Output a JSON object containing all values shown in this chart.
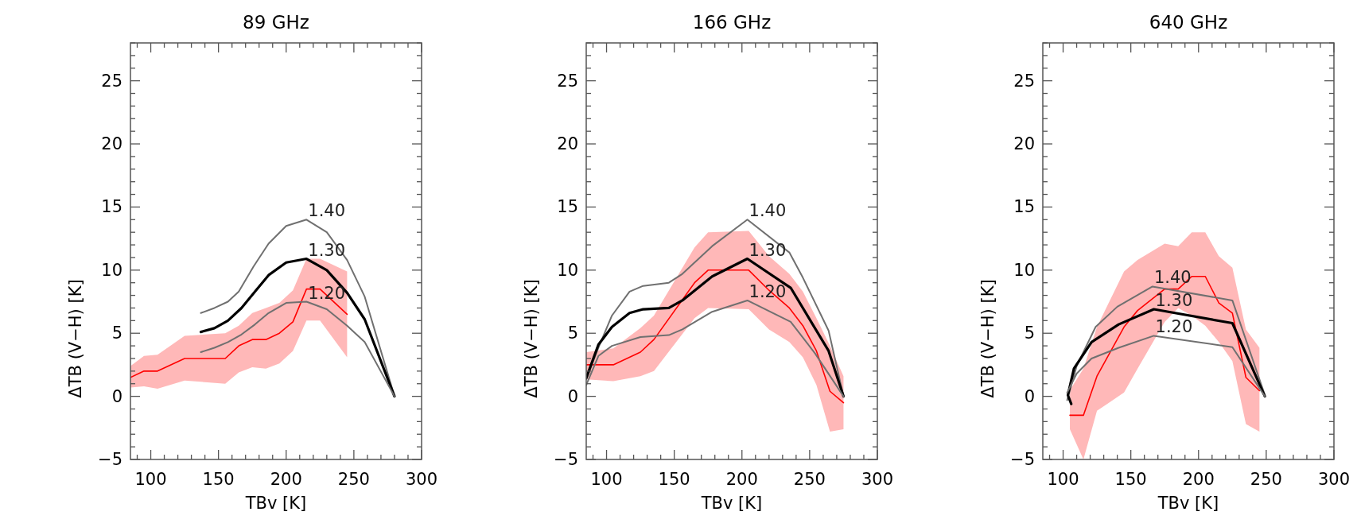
{
  "chart_data": [
    {
      "type": "line",
      "title": "89 GHz",
      "xlabel": "TBv [K]",
      "ylabel": "ΔTB (V−H) [K]",
      "xlim": [
        85,
        300
      ],
      "ylim": [
        -5,
        28
      ],
      "xticks": [
        {
          "value": 90,
          "label": null
        },
        100,
        {
          "value": 110,
          "label": null
        },
        {
          "value": 120,
          "label": null
        },
        {
          "value": 130,
          "label": null
        },
        {
          "value": 140,
          "label": null
        },
        150,
        {
          "value": 160,
          "label": null
        },
        {
          "value": 170,
          "label": null
        },
        {
          "value": 180,
          "label": null
        },
        {
          "value": 190,
          "label": null
        },
        200,
        {
          "value": 210,
          "label": null
        },
        {
          "value": 220,
          "label": null
        },
        {
          "value": 230,
          "label": null
        },
        {
          "value": 240,
          "label": null
        },
        250,
        {
          "value": 260,
          "label": null
        },
        {
          "value": 270,
          "label": null
        },
        {
          "value": 280,
          "label": null
        },
        {
          "value": 290,
          "label": null
        },
        300
      ],
      "yticks": [
        -5,
        {
          "value": -4,
          "label": null
        },
        {
          "value": -3,
          "label": null
        },
        {
          "value": -2,
          "label": null
        },
        {
          "value": -1,
          "label": null
        },
        0,
        {
          "value": 1,
          "label": null
        },
        {
          "value": 2,
          "label": null
        },
        {
          "value": 3,
          "label": null
        },
        {
          "value": 4,
          "label": null
        },
        5,
        {
          "value": 6,
          "label": null
        },
        {
          "value": 7,
          "label": null
        },
        {
          "value": 8,
          "label": null
        },
        {
          "value": 9,
          "label": null
        },
        10,
        {
          "value": 11,
          "label": null
        },
        {
          "value": 12,
          "label": null
        },
        {
          "value": 13,
          "label": null
        },
        {
          "value": 14,
          "label": null
        },
        15,
        {
          "value": 16,
          "label": null
        },
        {
          "value": 17,
          "label": null
        },
        {
          "value": 18,
          "label": null
        },
        {
          "value": 19,
          "label": null
        },
        20,
        {
          "value": 21,
          "label": null
        },
        {
          "value": 22,
          "label": null
        },
        {
          "value": 23,
          "label": null
        },
        {
          "value": 24,
          "label": null
        },
        25,
        {
          "value": 26,
          "label": null
        },
        {
          "value": 27,
          "label": null
        },
        {
          "value": 28,
          "label": null
        }
      ],
      "series": [
        {
          "color": "#ff0000",
          "x": [
            85,
            95,
            105,
            125,
            155,
            165,
            175,
            185,
            195,
            205,
            215,
            225,
            245
          ],
          "values": [
            1.5,
            2,
            2,
            3,
            3,
            4,
            4.5,
            4.5,
            5,
            5.9,
            8.5,
            8.5,
            6.5
          ],
          "lower": [
            0.7,
            0.8,
            0.6,
            1.25,
            1,
            1.9,
            2.3,
            2.2,
            2.6,
            3.6,
            6,
            6,
            3.1
          ],
          "upper": [
            2.4,
            3.2,
            3.3,
            4.8,
            5,
            5.6,
            6.6,
            7,
            7.4,
            8.4,
            10.9,
            10.9,
            9.9
          ]
        },
        {
          "name": "1.40",
          "color": "#707070",
          "x": [
            137,
            147,
            157,
            165,
            176,
            187,
            200,
            215,
            230,
            245,
            258,
            280
          ],
          "values": [
            6.6,
            7,
            7.5,
            8.3,
            10.3,
            12.1,
            13.5,
            14,
            13,
            10.8,
            7.9,
            0
          ]
        },
        {
          "name": "1.30",
          "color": "#000000",
          "x": [
            137,
            147,
            157,
            167,
            177,
            187,
            200,
            215,
            230,
            245,
            258,
            280
          ],
          "values": [
            5.1,
            5.4,
            6,
            7,
            8.3,
            9.6,
            10.6,
            10.9,
            10,
            8.2,
            6.1,
            0
          ]
        },
        {
          "name": "1.20",
          "color": "#707070",
          "x": [
            137,
            147,
            157,
            167,
            177,
            187,
            200,
            215,
            230,
            245,
            258,
            280
          ],
          "values": [
            3.5,
            3.85,
            4.3,
            4.9,
            5.7,
            6.6,
            7.4,
            7.5,
            6.9,
            5.6,
            4.3,
            0
          ]
        }
      ]
    },
    {
      "type": "line",
      "title": "166 GHz",
      "xlabel": "TBv [K]",
      "ylabel": "ΔTB (V−H) [K]",
      "xlim": [
        85,
        300
      ],
      "ylim": [
        -5,
        28
      ],
      "xticks": [
        {
          "value": 90,
          "label": null
        },
        100,
        {
          "value": 110,
          "label": null
        },
        {
          "value": 120,
          "label": null
        },
        {
          "value": 130,
          "label": null
        },
        {
          "value": 140,
          "label": null
        },
        150,
        {
          "value": 160,
          "label": null
        },
        {
          "value": 170,
          "label": null
        },
        {
          "value": 180,
          "label": null
        },
        {
          "value": 190,
          "label": null
        },
        200,
        {
          "value": 210,
          "label": null
        },
        {
          "value": 220,
          "label": null
        },
        {
          "value": 230,
          "label": null
        },
        {
          "value": 240,
          "label": null
        },
        250,
        {
          "value": 260,
          "label": null
        },
        {
          "value": 270,
          "label": null
        },
        {
          "value": 280,
          "label": null
        },
        {
          "value": 290,
          "label": null
        },
        300
      ],
      "yticks": [
        -5,
        {
          "value": -4,
          "label": null
        },
        {
          "value": -3,
          "label": null
        },
        {
          "value": -2,
          "label": null
        },
        {
          "value": -1,
          "label": null
        },
        0,
        {
          "value": 1,
          "label": null
        },
        {
          "value": 2,
          "label": null
        },
        {
          "value": 3,
          "label": null
        },
        {
          "value": 4,
          "label": null
        },
        5,
        {
          "value": 6,
          "label": null
        },
        {
          "value": 7,
          "label": null
        },
        {
          "value": 8,
          "label": null
        },
        {
          "value": 9,
          "label": null
        },
        10,
        {
          "value": 11,
          "label": null
        },
        {
          "value": 12,
          "label": null
        },
        {
          "value": 13,
          "label": null
        },
        {
          "value": 14,
          "label": null
        },
        15,
        {
          "value": 16,
          "label": null
        },
        {
          "value": 17,
          "label": null
        },
        {
          "value": 18,
          "label": null
        },
        {
          "value": 19,
          "label": null
        },
        20,
        {
          "value": 21,
          "label": null
        },
        {
          "value": 22,
          "label": null
        },
        {
          "value": 23,
          "label": null
        },
        {
          "value": 24,
          "label": null
        },
        25,
        {
          "value": 26,
          "label": null
        },
        {
          "value": 27,
          "label": null
        },
        {
          "value": 28,
          "label": null
        }
      ],
      "series": [
        {
          "color": "#ff0000",
          "x": [
            85,
            105,
            125,
            135,
            165,
            175,
            205,
            220,
            235,
            245,
            255,
            265,
            275
          ],
          "values": [
            2.5,
            2.5,
            3.5,
            4.5,
            9,
            10,
            10,
            8.4,
            7,
            5.6,
            3.6,
            0.4,
            -0.5
          ],
          "lower": [
            1.35,
            1.2,
            1.6,
            2,
            6.2,
            7,
            6.9,
            5.3,
            4.3,
            3.1,
            0.9,
            -2.8,
            -2.6
          ],
          "upper": [
            3.5,
            3.8,
            5.4,
            6.4,
            11.8,
            13,
            13.1,
            11.1,
            9.7,
            8.3,
            6.2,
            4,
            1.6
          ]
        },
        {
          "name": "1.40",
          "color": "#707070",
          "x": [
            85,
            94,
            104,
            117,
            127,
            146,
            156,
            178,
            204,
            235,
            245,
            264,
            275
          ],
          "values": [
            1.35,
            3.85,
            6.4,
            8.3,
            8.75,
            9,
            9.7,
            11.9,
            14,
            11.4,
            9.4,
            5.2,
            0
          ]
        },
        {
          "name": "1.30",
          "color": "#000000",
          "x": [
            85,
            94,
            104,
            117,
            127,
            146,
            156,
            178,
            204,
            236,
            264,
            275
          ],
          "values": [
            1.45,
            4.1,
            5.5,
            6.6,
            6.9,
            7,
            7.6,
            9.5,
            10.9,
            8.6,
            3.6,
            0
          ]
        },
        {
          "name": "1.20",
          "color": "#707070",
          "x": [
            85,
            94,
            104,
            125,
            146,
            156,
            178,
            204,
            236,
            254,
            275
          ],
          "values": [
            0.9,
            3.2,
            4,
            4.7,
            4.85,
            5.3,
            6.7,
            7.6,
            5.9,
            3.4,
            0
          ]
        }
      ]
    },
    {
      "type": "line",
      "title": "640 GHz",
      "xlabel": "TBv [K]",
      "ylabel": "ΔTB (V−H) [K]",
      "xlim": [
        85,
        300
      ],
      "ylim": [
        -5,
        28
      ],
      "xticks": [
        {
          "value": 90,
          "label": null
        },
        100,
        {
          "value": 110,
          "label": null
        },
        {
          "value": 120,
          "label": null
        },
        {
          "value": 130,
          "label": null
        },
        {
          "value": 140,
          "label": null
        },
        150,
        {
          "value": 160,
          "label": null
        },
        {
          "value": 170,
          "label": null
        },
        {
          "value": 180,
          "label": null
        },
        {
          "value": 190,
          "label": null
        },
        200,
        {
          "value": 210,
          "label": null
        },
        {
          "value": 220,
          "label": null
        },
        {
          "value": 230,
          "label": null
        },
        {
          "value": 240,
          "label": null
        },
        250,
        {
          "value": 260,
          "label": null
        },
        {
          "value": 270,
          "label": null
        },
        {
          "value": 280,
          "label": null
        },
        {
          "value": 290,
          "label": null
        },
        300
      ],
      "yticks": [
        -5,
        {
          "value": -4,
          "label": null
        },
        {
          "value": -3,
          "label": null
        },
        {
          "value": -2,
          "label": null
        },
        {
          "value": -1,
          "label": null
        },
        0,
        {
          "value": 1,
          "label": null
        },
        {
          "value": 2,
          "label": null
        },
        {
          "value": 3,
          "label": null
        },
        {
          "value": 4,
          "label": null
        },
        5,
        {
          "value": 6,
          "label": null
        },
        {
          "value": 7,
          "label": null
        },
        {
          "value": 8,
          "label": null
        },
        {
          "value": 9,
          "label": null
        },
        10,
        {
          "value": 11,
          "label": null
        },
        {
          "value": 12,
          "label": null
        },
        {
          "value": 13,
          "label": null
        },
        {
          "value": 14,
          "label": null
        },
        15,
        {
          "value": 16,
          "label": null
        },
        {
          "value": 17,
          "label": null
        },
        {
          "value": 18,
          "label": null
        },
        {
          "value": 19,
          "label": null
        },
        20,
        {
          "value": 21,
          "label": null
        },
        {
          "value": 22,
          "label": null
        },
        {
          "value": 23,
          "label": null
        },
        {
          "value": 24,
          "label": null
        },
        25,
        {
          "value": 26,
          "label": null
        },
        {
          "value": 27,
          "label": null
        },
        {
          "value": 28,
          "label": null
        }
      ],
      "series": [
        {
          "color": "#ff0000",
          "x": [
            105,
            115,
            125,
            145,
            155,
            175,
            185,
            195,
            205,
            215,
            225,
            235,
            245
          ],
          "values": [
            -1.5,
            -1.5,
            1.6,
            5.5,
            6.8,
            8.5,
            8.5,
            9.5,
            9.5,
            7.4,
            6.6,
            1.5,
            0.45
          ],
          "lower": [
            -2.6,
            -5,
            -1.15,
            0.3,
            2.2,
            5.9,
            7,
            6.4,
            5.6,
            4.3,
            2.8,
            -2.2,
            -2.8
          ],
          "upper": [
            0.5,
            2.2,
            5.5,
            9.9,
            10.8,
            12.1,
            11.9,
            13,
            13,
            11.1,
            10.2,
            5.3,
            3.85
          ]
        },
        {
          "name": "1.40",
          "color": "#707070",
          "x": [
            103,
            110,
            124,
            140,
            166,
            225,
            249
          ],
          "values": [
            -0.3,
            2.4,
            5.5,
            7.1,
            8.7,
            7.6,
            0.1
          ]
        },
        {
          "name": "1.30",
          "color": "#000000",
          "x": [
            106,
            103.5,
            108,
            121,
            141,
            167,
            225,
            249
          ],
          "values": [
            -0.6,
            0.1,
            2.2,
            4.3,
            5.7,
            6.9,
            5.8,
            0
          ]
        },
        {
          "name": "1.20",
          "color": "#707070",
          "x": [
            103,
            110,
            121,
            141,
            167,
            225,
            249
          ],
          "values": [
            0.3,
            1.8,
            3,
            3.85,
            4.8,
            3.9,
            0
          ]
        }
      ]
    }
  ]
}
